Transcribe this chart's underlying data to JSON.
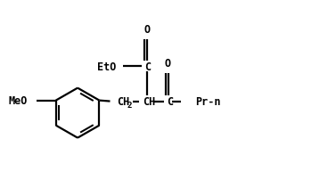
{
  "bg_color": "#ffffff",
  "line_color": "#000000",
  "text_color": "#000000",
  "figsize": [
    3.77,
    2.03
  ],
  "dpi": 100,
  "font_family": "monospace",
  "font_size": 8.5,
  "font_weight": "bold",
  "xlim": [
    0,
    10
  ],
  "ylim": [
    0,
    5.4
  ]
}
